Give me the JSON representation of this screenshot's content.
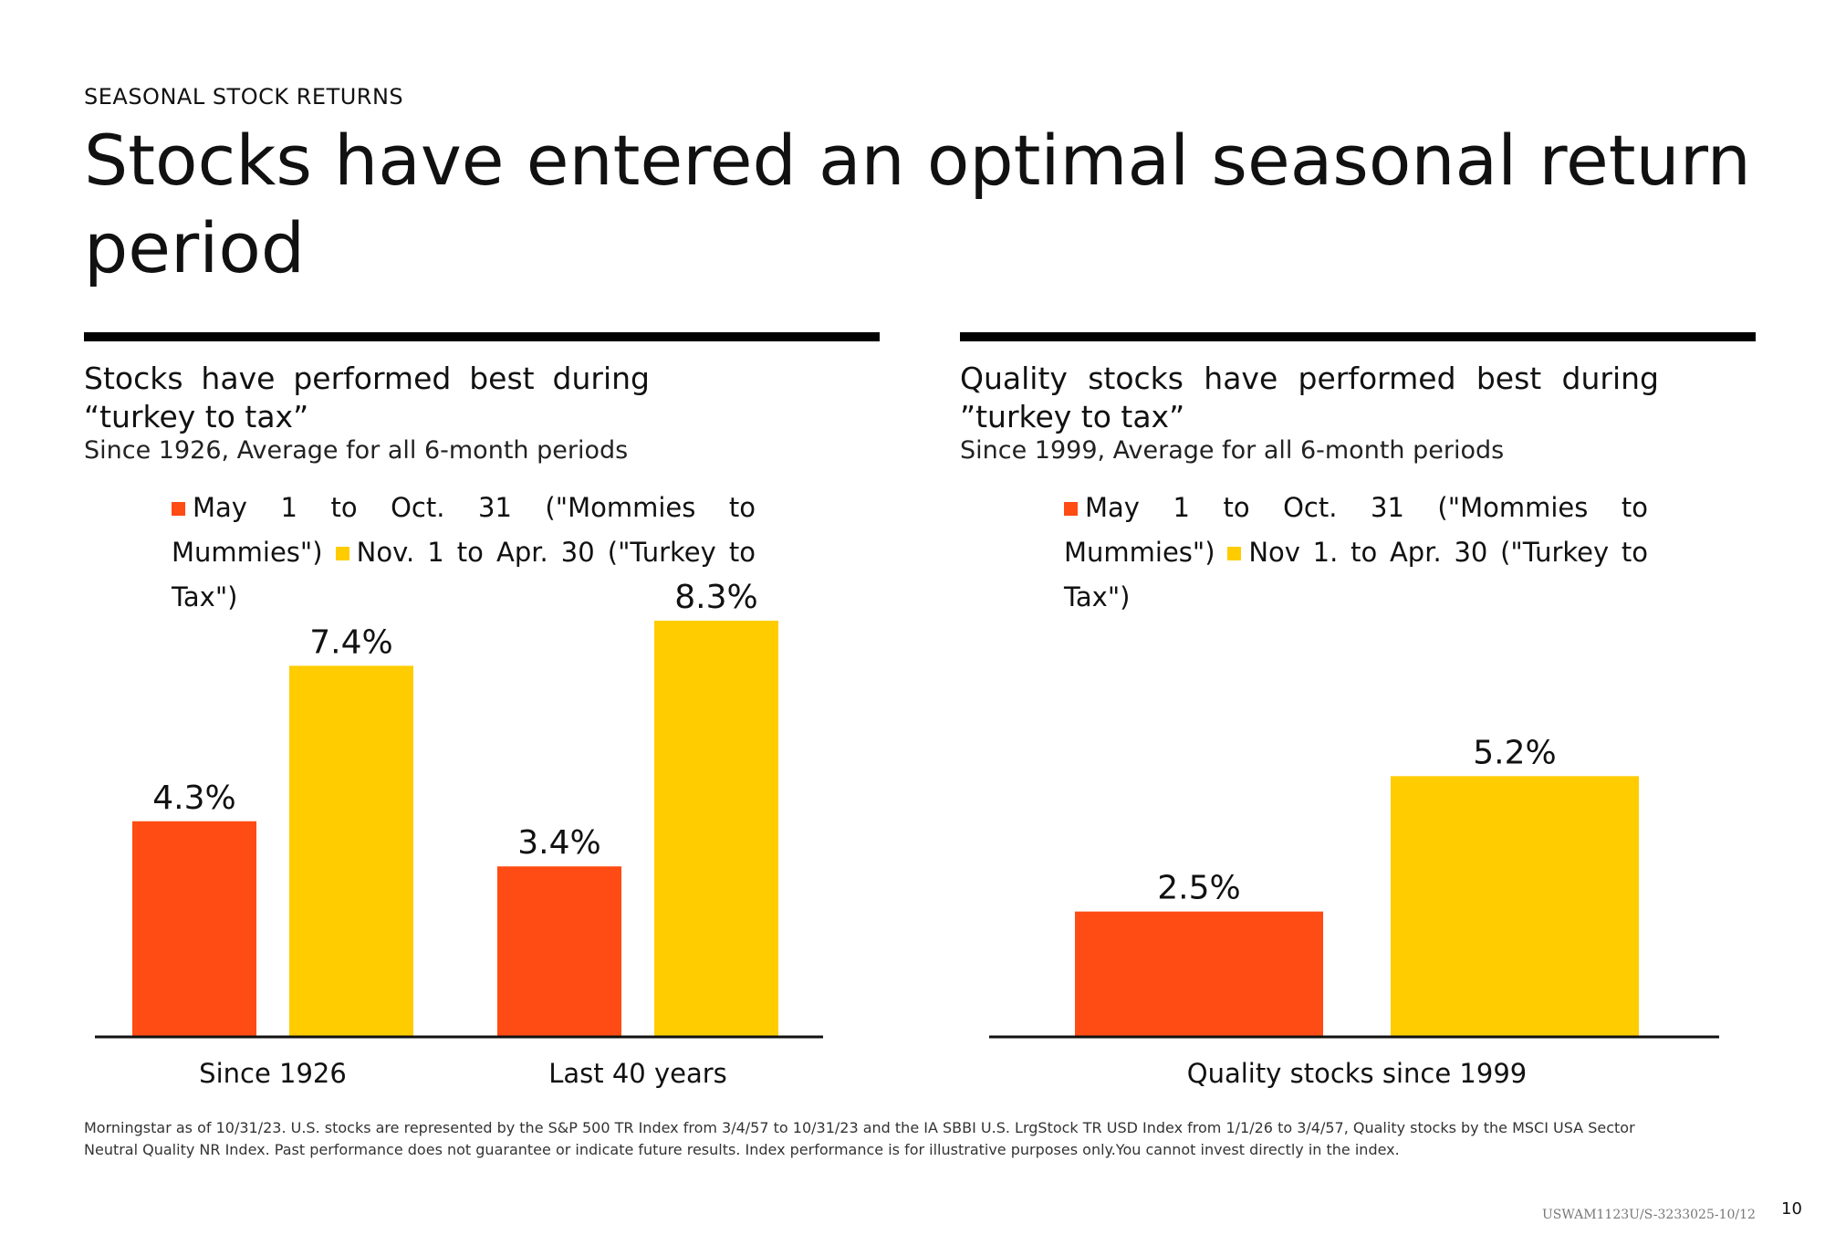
{
  "header": {
    "eyebrow": "SEASONAL STOCK RETURNS",
    "headline": "Stocks have entered an optimal seasonal return period"
  },
  "colors": {
    "series_may": "#ff4b14",
    "series_nov": "#ffcc00",
    "axis": "#111111",
    "rule": "#000000"
  },
  "panels": [
    {
      "title": "Stocks have performed best during “turkey to tax”",
      "subtitle": "Since 1926, Average for all 6-month periods",
      "legend": [
        "May 1 to Oct. 31 (\"Mommies to Mummies\")",
        "Nov. 1 to Apr. 30 (\"Turkey to Tax\")"
      ]
    },
    {
      "title": "Quality stocks have performed best during ”turkey to tax”",
      "subtitle": "Since 1999, Average for all 6-month periods",
      "legend": [
        "May 1 to Oct. 31 (\"Mommies to Mummies\")",
        "Nov 1. to Apr. 30 (\"Turkey to Tax\")"
      ]
    }
  ],
  "chart_data": [
    {
      "type": "bar",
      "title": "Stocks have performed best during “turkey to tax”",
      "subtitle": "Since 1926, Average for all 6-month periods",
      "categories": [
        "Since 1926",
        "Last 40 years"
      ],
      "series": [
        {
          "name": "May 1 to Oct. 31 (\"Mommies to Mummies\")",
          "values": [
            4.3,
            3.4
          ],
          "labels": [
            "4.3%",
            "3.4%"
          ]
        },
        {
          "name": "Nov. 1 to Apr. 30 (\"Turkey to Tax\")",
          "values": [
            7.4,
            8.3
          ],
          "labels": [
            "7.4%",
            "8.3%"
          ]
        }
      ],
      "xlabel": "",
      "ylabel": "",
      "ylim": [
        0,
        8.3
      ],
      "grid": false,
      "legend": "top"
    },
    {
      "type": "bar",
      "title": "Quality stocks have performed best during ”turkey to tax”",
      "subtitle": "Since 1999, Average for all 6-month periods",
      "categories": [
        "Quality stocks since 1999"
      ],
      "series": [
        {
          "name": "May 1 to Oct. 31 (\"Mommies to Mummies\")",
          "values": [
            2.5
          ],
          "labels": [
            "2.5%"
          ]
        },
        {
          "name": "Nov 1. to Apr. 30 (\"Turkey to Tax\")",
          "values": [
            5.2
          ],
          "labels": [
            "5.2%"
          ]
        }
      ],
      "xlabel": "",
      "ylabel": "",
      "ylim": [
        0,
        8.3
      ],
      "grid": false,
      "legend": "top"
    }
  ],
  "footer": {
    "footnote": "Morningstar as of 10/31/23. U.S. stocks are represented by the S&P 500 TR Index from 3/4/57 to 10/31/23 and the IA SBBI U.S. LrgStock TR USD Index from 1/1/26 to 3/4/57, Quality stocks by the MSCI USA Sector Neutral Quality NR Index. Past performance does not guarantee or indicate future results. Index performance is for illustrative purposes only.You cannot invest directly in the index.",
    "doc_code": "USWAM1123U/S-3233025-10/12",
    "page_number": "10"
  }
}
